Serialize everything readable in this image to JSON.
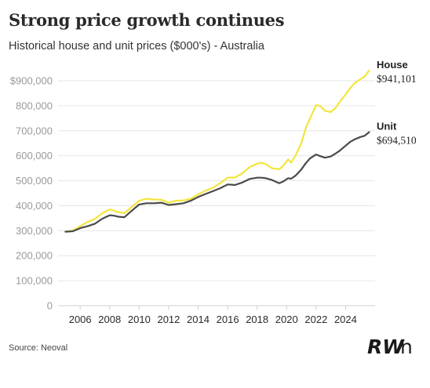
{
  "header": {
    "title": "Strong price growth continues",
    "subtitle": "Historical house and unit prices ($000's) - Australia"
  },
  "footer": {
    "source": "Source: Neoval",
    "logo": "RWn"
  },
  "colors": {
    "house": "#f3e53b",
    "unit": "#4a4a4a",
    "grid": "#e6e6e6",
    "axis": "#cfcfcf"
  },
  "chart_data": {
    "type": "line",
    "title": "Strong price growth continues",
    "subtitle": "Historical house and unit prices ($000's) - Australia",
    "xlabel": "",
    "ylabel": "",
    "xlim": [
      2004.5,
      2026
    ],
    "ylim": [
      0,
      900000
    ],
    "yticks": [
      0,
      100000,
      200000,
      300000,
      400000,
      500000,
      600000,
      700000,
      800000,
      900000
    ],
    "ytick_labels": [
      "0",
      "100,000",
      "200,000",
      "300,000",
      "400,000",
      "500,000",
      "600,000",
      "700,000",
      "800,000",
      "$900,000"
    ],
    "xticks": [
      2006,
      2008,
      2010,
      2012,
      2014,
      2016,
      2018,
      2020,
      2022,
      2024
    ],
    "xtick_labels": [
      "2006",
      "2008",
      "2010",
      "2012",
      "2014",
      "2016",
      "2018",
      "2020",
      "2022",
      "2024"
    ],
    "grid": "horizontal",
    "legend": "end-of-line labels",
    "series": [
      {
        "name": "House",
        "end_label": "$941,101",
        "x": [
          2005.0,
          2005.5,
          2006.0,
          2006.5,
          2007.0,
          2007.5,
          2008.0,
          2008.3,
          2008.6,
          2009.0,
          2009.5,
          2010.0,
          2010.5,
          2011.0,
          2011.5,
          2012.0,
          2012.5,
          2013.0,
          2013.5,
          2014.0,
          2014.5,
          2015.0,
          2015.5,
          2016.0,
          2016.5,
          2017.0,
          2017.5,
          2018.0,
          2018.3,
          2018.6,
          2019.0,
          2019.5,
          2019.8,
          2020.1,
          2020.3,
          2020.6,
          2021.0,
          2021.3,
          2021.6,
          2022.0,
          2022.3,
          2022.6,
          2023.0,
          2023.3,
          2023.6,
          2024.0,
          2024.3,
          2024.6,
          2025.0,
          2025.3,
          2025.6
        ],
        "values": [
          297000,
          300000,
          318000,
          335000,
          347000,
          370000,
          385000,
          380000,
          374000,
          370000,
          395000,
          420000,
          428000,
          425000,
          424000,
          412000,
          420000,
          421000,
          428000,
          445000,
          460000,
          472000,
          490000,
          512000,
          513000,
          530000,
          555000,
          568000,
          572000,
          566000,
          550000,
          546000,
          562000,
          585000,
          573000,
          600000,
          650000,
          710000,
          750000,
          803000,
          798000,
          780000,
          775000,
          790000,
          815000,
          845000,
          870000,
          890000,
          906000,
          918000,
          941101
        ]
      },
      {
        "name": "Unit",
        "end_label": "$694,510",
        "x": [
          2005.0,
          2005.5,
          2006.0,
          2006.5,
          2007.0,
          2007.5,
          2008.0,
          2008.3,
          2008.6,
          2009.0,
          2009.5,
          2010.0,
          2010.5,
          2011.0,
          2011.5,
          2012.0,
          2012.5,
          2013.0,
          2013.5,
          2014.0,
          2014.5,
          2015.0,
          2015.5,
          2016.0,
          2016.5,
          2017.0,
          2017.5,
          2018.0,
          2018.3,
          2018.6,
          2019.0,
          2019.5,
          2019.8,
          2020.1,
          2020.3,
          2020.6,
          2021.0,
          2021.3,
          2021.6,
          2022.0,
          2022.3,
          2022.6,
          2023.0,
          2023.3,
          2023.6,
          2024.0,
          2024.3,
          2024.6,
          2025.0,
          2025.3,
          2025.6
        ],
        "values": [
          296000,
          298000,
          310000,
          318000,
          328000,
          348000,
          362000,
          360000,
          356000,
          354000,
          380000,
          405000,
          410000,
          410000,
          412000,
          403000,
          406000,
          410000,
          420000,
          435000,
          447000,
          458000,
          470000,
          485000,
          483000,
          493000,
          507000,
          512000,
          512000,
          510000,
          503000,
          490000,
          498000,
          510000,
          508000,
          520000,
          545000,
          570000,
          590000,
          605000,
          598000,
          592000,
          597000,
          608000,
          620000,
          640000,
          655000,
          665000,
          675000,
          680000,
          694510
        ]
      }
    ]
  }
}
